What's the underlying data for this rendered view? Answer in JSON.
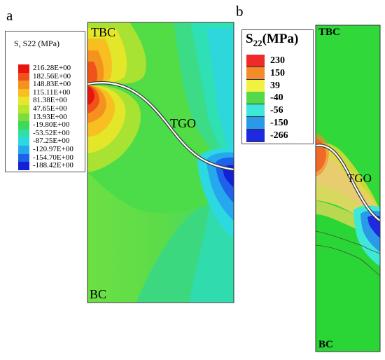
{
  "panel_a": {
    "letter": "a",
    "legend_title": "S, S22 (MPa)",
    "legend": [
      {
        "value": "216.28E+00",
        "color": "#e8140e"
      },
      {
        "value": "182.56E+00",
        "color": "#f0521a"
      },
      {
        "value": "148.83E+00",
        "color": "#f5921f"
      },
      {
        "value": "115.11E+00",
        "color": "#f7c020"
      },
      {
        "value": "81.38E+00",
        "color": "#e8e62a"
      },
      {
        "value": "47.65E+00",
        "color": "#b8e62c"
      },
      {
        "value": "13.93E+00",
        "color": "#7fdc3a"
      },
      {
        "value": "-19.80E+00",
        "color": "#3ed85a"
      },
      {
        "value": "-53.52E+00",
        "color": "#2ee0a8"
      },
      {
        "value": "-87.25E+00",
        "color": "#2cd9e0"
      },
      {
        "value": "-120.97E+00",
        "color": "#25a8ee"
      },
      {
        "value": "-154.70E+00",
        "color": "#1d62e8"
      },
      {
        "value": "-188.42E+00",
        "color": "#1420d8"
      }
    ],
    "label_top": "TBC",
    "label_interface": "TGO",
    "label_bottom": "BC"
  },
  "panel_b": {
    "letter": "b",
    "legend_title": "S",
    "legend_title_sub": "22",
    "legend_title_unit": "(MPa)",
    "legend": [
      {
        "value": "230",
        "color": "#ee2a2a"
      },
      {
        "value": "150",
        "color": "#f28c28"
      },
      {
        "value": "39",
        "color": "#f2f040"
      },
      {
        "value": "-40",
        "color": "#54d84c"
      },
      {
        "value": "-56",
        "color": "#3ee8d8"
      },
      {
        "value": "-150",
        "color": "#2a9ae8"
      },
      {
        "value": "-266",
        "color": "#1e2ae0"
      }
    ],
    "label_top": "TBC",
    "label_interface": "TGO",
    "label_bottom": "BC"
  }
}
